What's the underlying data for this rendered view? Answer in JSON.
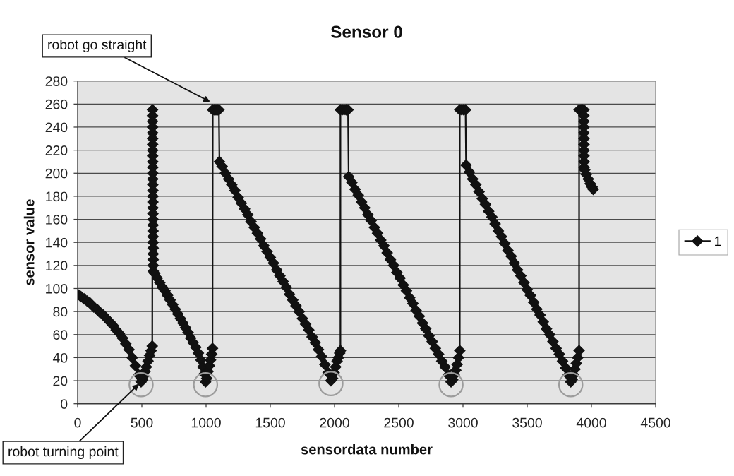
{
  "chart_data": {
    "type": "line",
    "title": "Sensor 0",
    "xlabel": "sensordata number",
    "ylabel": "sensor value",
    "x": [
      0,
      25,
      50,
      75,
      100,
      125,
      150,
      175,
      200,
      225,
      250,
      275,
      300,
      325,
      350,
      375,
      400,
      425,
      450,
      475,
      494,
      505,
      515,
      525,
      535,
      548,
      560,
      572,
      581,
      583,
      583,
      583,
      583,
      584,
      584,
      584,
      584,
      584,
      585,
      585,
      585,
      585,
      585,
      586,
      586,
      586,
      586,
      586,
      587,
      587,
      587,
      587,
      587,
      588,
      588,
      588,
      588,
      589,
      600,
      620,
      640,
      660,
      680,
      700,
      720,
      740,
      760,
      780,
      800,
      820,
      840,
      860,
      880,
      900,
      920,
      940,
      960,
      975,
      987,
      996,
      1005,
      1015,
      1025,
      1035,
      1044,
      1050,
      1052,
      1062,
      1072,
      1082,
      1092,
      1100,
      1104,
      1125,
      1150,
      1175,
      1200,
      1225,
      1250,
      1275,
      1300,
      1325,
      1350,
      1375,
      1400,
      1425,
      1450,
      1475,
      1500,
      1525,
      1550,
      1575,
      1600,
      1625,
      1650,
      1675,
      1700,
      1725,
      1750,
      1775,
      1800,
      1825,
      1850,
      1875,
      1900,
      1925,
      1950,
      1972,
      1985,
      1997,
      2009,
      2020,
      2030,
      2040,
      2046,
      2046,
      2060,
      2075,
      2090,
      2105,
      2110,
      2135,
      2160,
      2185,
      2210,
      2235,
      2260,
      2285,
      2310,
      2335,
      2360,
      2385,
      2410,
      2435,
      2460,
      2485,
      2510,
      2535,
      2560,
      2585,
      2610,
      2635,
      2660,
      2685,
      2710,
      2735,
      2760,
      2785,
      2810,
      2835,
      2860,
      2885,
      2907,
      2920,
      2932,
      2944,
      2954,
      2965,
      2975,
      2975,
      2990,
      3005,
      3020,
      3024,
      3050,
      3075,
      3100,
      3125,
      3150,
      3175,
      3200,
      3225,
      3250,
      3275,
      3300,
      3325,
      3350,
      3375,
      3400,
      3425,
      3450,
      3475,
      3500,
      3525,
      3550,
      3575,
      3600,
      3625,
      3650,
      3675,
      3700,
      3725,
      3750,
      3775,
      3800,
      3820,
      3839,
      3850,
      3862,
      3872,
      3882,
      3893,
      3904,
      3904,
      3918,
      3930,
      3941,
      3941,
      3941,
      3941,
      3941,
      3942,
      3942,
      3942,
      3942,
      3943,
      3943,
      3948,
      3960,
      3975,
      3990,
      4005,
      4014
    ],
    "series": [
      {
        "name": "1",
        "color": "#111111",
        "values": [
          95,
          93,
          91,
          89,
          87,
          84,
          82,
          79,
          77,
          74,
          71,
          68,
          64,
          61,
          57,
          52,
          47,
          40,
          33,
          25,
          19,
          21,
          24,
          28,
          32,
          37,
          42,
          46,
          50,
          255,
          250,
          245,
          240,
          235,
          230,
          225,
          220,
          215,
          210,
          205,
          200,
          195,
          190,
          185,
          180,
          175,
          170,
          165,
          160,
          155,
          150,
          145,
          140,
          135,
          130,
          125,
          120,
          115,
          113,
          109,
          105,
          101,
          98,
          94,
          90,
          86,
          82,
          78,
          74,
          70,
          66,
          62,
          57,
          53,
          49,
          44,
          38,
          32,
          26,
          19,
          22,
          28,
          33,
          38,
          43,
          48,
          255,
          255,
          255,
          255,
          255,
          255,
          210,
          206,
          200,
          195,
          190,
          185,
          179,
          174,
          169,
          164,
          158,
          153,
          148,
          143,
          137,
          132,
          127,
          122,
          116,
          111,
          106,
          101,
          95,
          90,
          85,
          80,
          74,
          69,
          64,
          58,
          53,
          47,
          41,
          34,
          27,
          20,
          22,
          27,
          32,
          37,
          40,
          44,
          46,
          255,
          255,
          255,
          255,
          255,
          197,
          192,
          186,
          181,
          175,
          170,
          164,
          159,
          153,
          148,
          142,
          137,
          131,
          125,
          120,
          114,
          109,
          103,
          98,
          92,
          87,
          81,
          76,
          70,
          65,
          59,
          54,
          48,
          43,
          37,
          32,
          25,
          19,
          21,
          25,
          29,
          34,
          40,
          46,
          255,
          255,
          255,
          255,
          207,
          201,
          195,
          190,
          184,
          178,
          173,
          167,
          162,
          156,
          150,
          145,
          139,
          133,
          128,
          122,
          116,
          111,
          105,
          99,
          94,
          88,
          82,
          77,
          71,
          65,
          60,
          54,
          48,
          43,
          37,
          31,
          25,
          19,
          21,
          25,
          30,
          35,
          40,
          46,
          255,
          255,
          255,
          255,
          250,
          245,
          240,
          235,
          230,
          225,
          220,
          215,
          210,
          205,
          203,
          199,
          195,
          191,
          188,
          186
        ]
      }
    ],
    "xlim": [
      0,
      4500
    ],
    "xticks": [
      0,
      500,
      1000,
      1500,
      2000,
      2500,
      3000,
      3500,
      4000,
      4500
    ],
    "ylim": [
      0,
      280
    ],
    "yticks": [
      0,
      20,
      40,
      60,
      80,
      100,
      120,
      140,
      160,
      180,
      200,
      220,
      240,
      260,
      280
    ],
    "grid": "y",
    "legend": "right",
    "marker": "diamond",
    "line_style": "solid",
    "annotations": [
      {
        "text": "robot go straight",
        "x": 1031,
        "y": 262
      },
      {
        "text": "robot turning point",
        "x": 494,
        "y": 19
      }
    ]
  }
}
